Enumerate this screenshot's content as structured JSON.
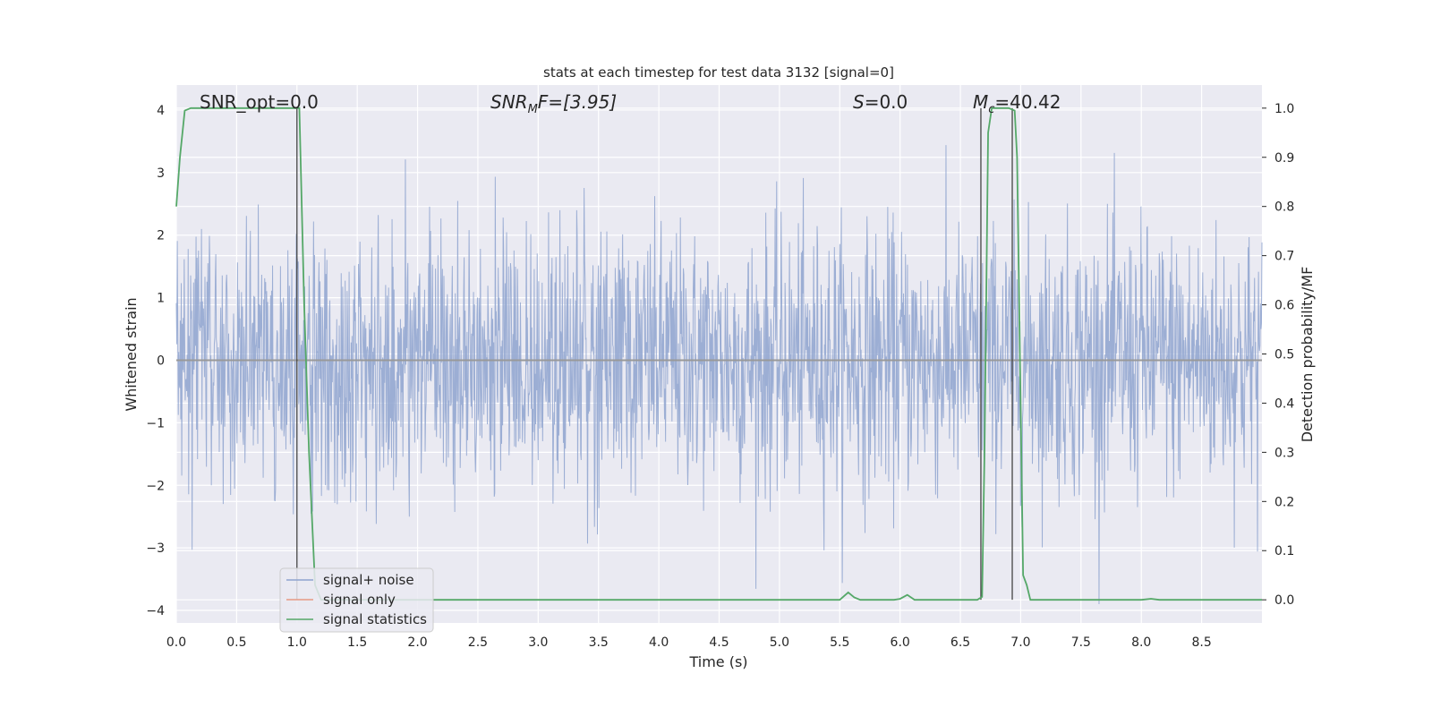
{
  "chart_data": {
    "type": "line",
    "title": "stats at each timestep for test data 3132 [signal=0]",
    "xlabel": "Time (s)",
    "ylabel_left": "Whitened strain",
    "ylabel_right": "Detection probability/MF",
    "xlim": [
      0.0,
      9.0
    ],
    "ylim_left": [
      -4.2,
      4.4
    ],
    "ylim_right": [
      -0.047,
      1.047
    ],
    "x_ticks": [
      "0.0",
      "0.5",
      "1.0",
      "1.5",
      "2.0",
      "2.5",
      "3.0",
      "3.5",
      "4.0",
      "4.5",
      "5.0",
      "5.5",
      "6.0",
      "6.5",
      "7.0",
      "7.5",
      "8.0",
      "8.5"
    ],
    "y_ticks_left": [
      "4",
      "3",
      "2",
      "1",
      "0",
      "−1",
      "−2",
      "−3",
      "−4"
    ],
    "y_ticks_right": [
      "1.0",
      "0.9",
      "0.8",
      "0.7",
      "0.6",
      "0.5",
      "0.4",
      "0.3",
      "0.2",
      "0.1",
      "0.0"
    ],
    "grid": true,
    "legend_position": "lower-left",
    "annotations": {
      "snr_opt": "SNR_opt=0.0",
      "snr_mf_main": "SNR",
      "snr_mf_sub": "M",
      "snr_mf_rest": "F=[3.95]",
      "s_main": "S",
      "s_rest": "=0.0",
      "mc_main": "M",
      "mc_sub": "c",
      "mc_rest": "=40.42"
    },
    "series": [
      {
        "name": "signal+ noise",
        "color": "#8ea3cf",
        "axis": "left",
        "description_values": "whitened noise, roughly gaussian, mostly within ±2.5, peaks near ±3.9"
      },
      {
        "name": "signal only",
        "color": "#e69a83",
        "axis": "left",
        "values_y": 0.0
      },
      {
        "name": "signal statistics",
        "color": "#55a868",
        "axis": "right",
        "x": [
          0.0,
          0.03,
          0.07,
          0.12,
          0.2,
          0.5,
          0.8,
          0.99,
          1.02,
          1.06,
          1.1,
          1.15,
          1.2,
          1.5,
          2.0,
          3.0,
          4.0,
          5.0,
          5.5,
          5.57,
          5.62,
          5.67,
          5.75,
          5.95,
          6.0,
          6.06,
          6.12,
          6.2,
          6.5,
          6.64,
          6.68,
          6.7,
          6.73,
          6.76,
          6.8,
          6.9,
          6.95,
          6.97,
          7.02,
          7.05,
          7.08,
          7.15,
          7.5,
          8.0,
          8.08,
          8.15,
          8.5,
          9.0
        ],
        "y": [
          0.8,
          0.9,
          0.995,
          1.0,
          1.0,
          1.0,
          1.0,
          1.0,
          1.0,
          0.6,
          0.3,
          0.03,
          0.0,
          0.0,
          0.0,
          0.0,
          0.0,
          0.0,
          0.0,
          0.015,
          0.005,
          0.0,
          0.0,
          0.0,
          0.002,
          0.01,
          0.0,
          0.0,
          0.0,
          0.0,
          0.006,
          0.3,
          0.95,
          1.0,
          1.0,
          1.0,
          0.995,
          0.9,
          0.05,
          0.03,
          0.0,
          0.0,
          0.0,
          0.0,
          0.002,
          0.0,
          0.0,
          0.0
        ]
      }
    ],
    "vertical_lines_x": [
      1.0,
      6.67,
      6.93
    ],
    "legend": [
      {
        "label": "signal+ noise",
        "color": "#8ea3cf"
      },
      {
        "label": "signal only",
        "color": "#e69a83"
      },
      {
        "label": "signal statistics",
        "color": "#55a868"
      }
    ]
  }
}
